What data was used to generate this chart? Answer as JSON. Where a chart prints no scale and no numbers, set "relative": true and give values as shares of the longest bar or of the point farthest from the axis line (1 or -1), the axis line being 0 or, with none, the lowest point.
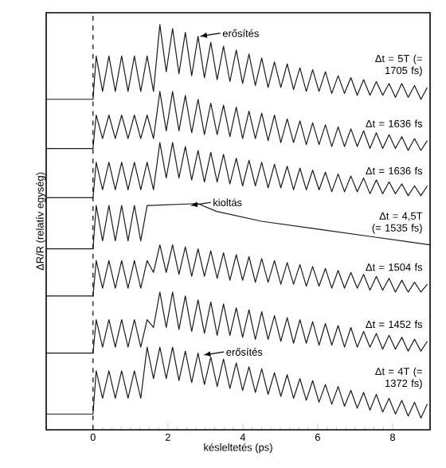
{
  "chart_data": {
    "type": "line",
    "relative": true,
    "xlabel": "késleltetés (ps)",
    "ylabel": "ΔR/R (relatív egység)",
    "xlim": [
      -1.25,
      9.0
    ],
    "xticks": [
      0,
      2,
      4,
      6,
      8
    ],
    "grid": false,
    "marker": "none",
    "line_style": "solid",
    "x": [
      -1.25,
      0,
      0.085,
      0.255,
      0.425,
      0.595,
      0.765,
      0.935,
      1.105,
      1.275,
      1.445,
      1.615,
      1.785,
      1.955,
      2.125,
      2.295,
      2.465,
      2.635,
      2.805,
      2.975,
      3.145,
      3.315,
      3.485,
      3.655,
      3.825,
      3.995,
      4.165,
      4.335,
      4.505,
      4.675,
      4.845,
      5.015,
      5.185,
      5.355,
      5.525,
      5.695,
      5.865,
      6.035,
      6.205,
      6.375,
      6.545,
      6.715,
      6.885,
      7.055,
      7.225,
      7.395,
      7.565,
      7.735,
      7.905,
      8.075,
      8.245,
      8.415,
      8.585,
      8.755,
      8.925
    ],
    "series": [
      {
        "name": "Δt = 5T (= 1705 fs)",
        "color": "#1a1a1a",
        "values": [
          0.81,
          0.81,
          0.92,
          0.83,
          0.92,
          0.83,
          0.92,
          0.83,
          0.92,
          0.83,
          0.92,
          0.83,
          1.0,
          0.88,
          0.99,
          0.875,
          0.98,
          0.87,
          0.97,
          0.865,
          0.955,
          0.86,
          0.945,
          0.855,
          0.935,
          0.85,
          0.925,
          0.845,
          0.915,
          0.84,
          0.905,
          0.84,
          0.9,
          0.835,
          0.89,
          0.83,
          0.885,
          0.83,
          0.88,
          0.825,
          0.87,
          0.825,
          0.865,
          0.82,
          0.86,
          0.82,
          0.855,
          0.82,
          0.85,
          0.815,
          0.85,
          0.815,
          0.845,
          0.81,
          0.84
        ]
      },
      {
        "name": "Δt = 1636 fs",
        "color": "#1a1a1a",
        "values": [
          0.685,
          0.685,
          0.77,
          0.71,
          0.77,
          0.71,
          0.77,
          0.71,
          0.77,
          0.71,
          0.77,
          0.71,
          0.83,
          0.73,
          0.83,
          0.73,
          0.82,
          0.725,
          0.81,
          0.72,
          0.8,
          0.72,
          0.795,
          0.715,
          0.79,
          0.71,
          0.78,
          0.71,
          0.775,
          0.705,
          0.77,
          0.7,
          0.76,
          0.7,
          0.755,
          0.695,
          0.75,
          0.695,
          0.745,
          0.69,
          0.74,
          0.69,
          0.735,
          0.69,
          0.73,
          0.685,
          0.725,
          0.685,
          0.72,
          0.685,
          0.715,
          0.68,
          0.71,
          0.68,
          0.705
        ]
      },
      {
        "name": "Δt = 1636 fs",
        "color": "#1a1a1a",
        "values": [
          0.56,
          0.56,
          0.65,
          0.58,
          0.65,
          0.58,
          0.65,
          0.58,
          0.65,
          0.58,
          0.65,
          0.58,
          0.7,
          0.61,
          0.7,
          0.61,
          0.69,
          0.605,
          0.68,
          0.6,
          0.675,
          0.6,
          0.67,
          0.595,
          0.66,
          0.59,
          0.655,
          0.59,
          0.65,
          0.585,
          0.645,
          0.585,
          0.64,
          0.58,
          0.635,
          0.58,
          0.63,
          0.58,
          0.625,
          0.575,
          0.62,
          0.575,
          0.615,
          0.575,
          0.61,
          0.57,
          0.605,
          0.57,
          0.6,
          0.57,
          0.595,
          0.565,
          0.59,
          0.565,
          0.59
        ]
      },
      {
        "name": "Δt = 4,5T (= 1535 fs)",
        "color": "#1a1a1a",
        "x": [
          -1.25,
          0,
          0.085,
          0.255,
          0.425,
          0.595,
          0.765,
          0.935,
          1.105,
          1.275,
          1.445,
          1.53,
          2.8,
          3.3,
          4.5,
          6,
          7.5,
          9
        ],
        "values": [
          0.43,
          0.43,
          0.54,
          0.45,
          0.54,
          0.45,
          0.54,
          0.45,
          0.54,
          0.45,
          0.54,
          0.54,
          0.545,
          0.525,
          0.5,
          0.48,
          0.46,
          0.44
        ]
      },
      {
        "name": "Δt = 1504 fs",
        "color": "#1a1a1a",
        "values": [
          0.31,
          0.31,
          0.4,
          0.33,
          0.4,
          0.33,
          0.4,
          0.33,
          0.4,
          0.33,
          0.4,
          0.37,
          0.44,
          0.37,
          0.44,
          0.365,
          0.435,
          0.36,
          0.43,
          0.36,
          0.425,
          0.355,
          0.42,
          0.35,
          0.415,
          0.35,
          0.41,
          0.345,
          0.405,
          0.345,
          0.4,
          0.34,
          0.395,
          0.34,
          0.39,
          0.335,
          0.385,
          0.335,
          0.38,
          0.33,
          0.375,
          0.33,
          0.37,
          0.33,
          0.365,
          0.325,
          0.36,
          0.325,
          0.355,
          0.32,
          0.35,
          0.32,
          0.345,
          0.32,
          0.34
        ]
      },
      {
        "name": "Δt = 1452 fs",
        "color": "#1a1a1a",
        "values": [
          0.165,
          0.165,
          0.25,
          0.18,
          0.25,
          0.18,
          0.25,
          0.18,
          0.25,
          0.18,
          0.25,
          0.23,
          0.32,
          0.23,
          0.32,
          0.225,
          0.31,
          0.22,
          0.3,
          0.215,
          0.295,
          0.21,
          0.29,
          0.21,
          0.28,
          0.205,
          0.275,
          0.2,
          0.27,
          0.2,
          0.26,
          0.195,
          0.255,
          0.19,
          0.25,
          0.19,
          0.245,
          0.185,
          0.24,
          0.185,
          0.235,
          0.18,
          0.23,
          0.18,
          0.22,
          0.18,
          0.215,
          0.175,
          0.21,
          0.175,
          0.205,
          0.17,
          0.2,
          0.17,
          0.195
        ]
      },
      {
        "name": "Δt = 4T (= 1372 fs)",
        "color": "#1a1a1a",
        "values": [
          0.01,
          0.01,
          0.12,
          0.05,
          0.12,
          0.05,
          0.12,
          0.05,
          0.12,
          0.05,
          0.18,
          0.1,
          0.18,
          0.1,
          0.18,
          0.095,
          0.17,
          0.09,
          0.165,
          0.085,
          0.155,
          0.08,
          0.15,
          0.075,
          0.14,
          0.07,
          0.13,
          0.065,
          0.125,
          0.06,
          0.115,
          0.055,
          0.11,
          0.05,
          0.1,
          0.045,
          0.095,
          0.04,
          0.085,
          0.035,
          0.08,
          0.03,
          0.07,
          0.025,
          0.065,
          0.02,
          0.06,
          0.015,
          0.05,
          0.01,
          0.045,
          0.005,
          0.04,
          0.0,
          0.035
        ]
      }
    ],
    "ref_lines": [
      {
        "axis": "x",
        "value": 0,
        "line_style": "dashed"
      }
    ],
    "annotations": [
      {
        "text": "erősítés",
        "x": 2.805,
        "y": 0.97
      },
      {
        "text": "kioltás",
        "x": 2.55,
        "y": 0.54
      },
      {
        "text": "erősítés",
        "x": 2.9,
        "y": 0.16
      }
    ]
  }
}
